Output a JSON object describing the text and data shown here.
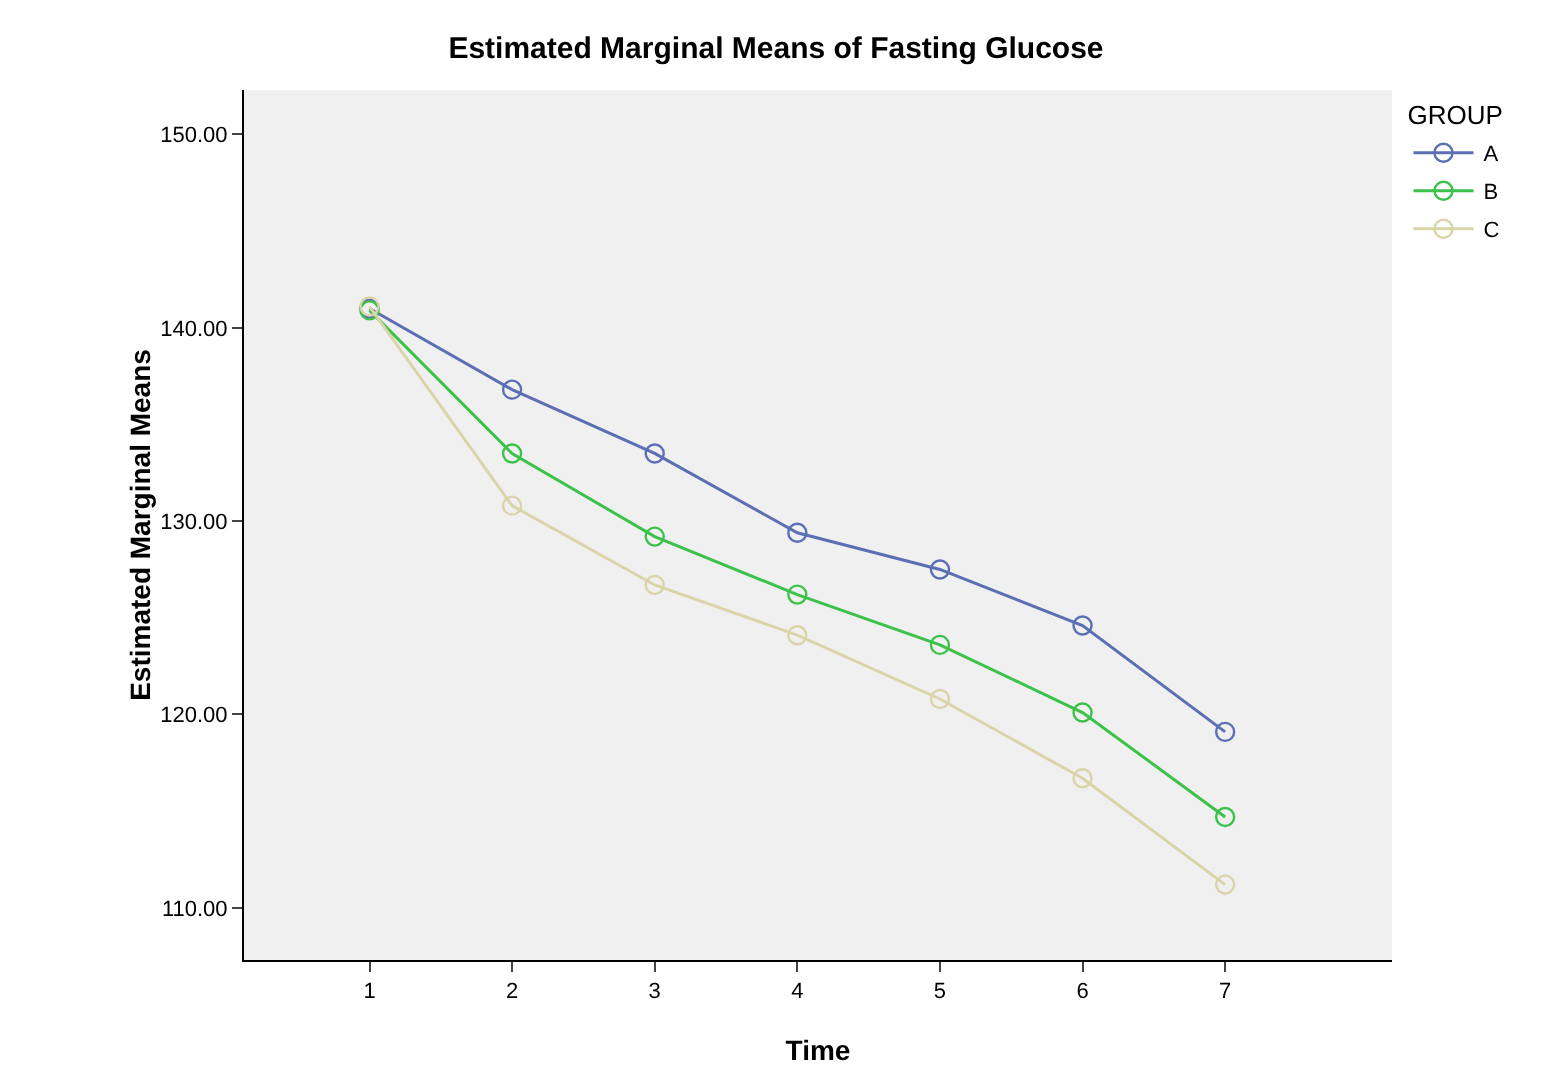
{
  "chart_data": {
    "type": "line",
    "title": "Estimated Marginal Means of Fasting Glucose",
    "xlabel": "Time",
    "ylabel": "Estimated Marginal Means",
    "legend_title": "GROUP",
    "x": [
      1,
      2,
      3,
      4,
      5,
      6,
      7
    ],
    "series": [
      {
        "name": "A",
        "color": "#5b6fb5",
        "values": [
          141.0,
          136.8,
          133.5,
          129.4,
          127.5,
          124.6,
          119.1
        ]
      },
      {
        "name": "B",
        "color": "#3cc24a",
        "values": [
          140.9,
          133.5,
          129.2,
          126.2,
          123.6,
          120.1,
          114.7
        ]
      },
      {
        "name": "C",
        "color": "#d9d5a8",
        "values": [
          141.1,
          130.8,
          126.7,
          124.1,
          120.8,
          116.7,
          111.2
        ]
      }
    ],
    "xlim": [
      0.12,
      8.17
    ],
    "xticks": [
      1,
      2,
      3,
      4,
      5,
      6,
      7
    ],
    "ylim": [
      107.3,
      152.3
    ],
    "yticks": [
      {
        "value": 110,
        "label": "110.00"
      },
      {
        "value": 120,
        "label": "120.00"
      },
      {
        "value": 130,
        "label": "130.00"
      },
      {
        "value": 140,
        "label": "140.00"
      },
      {
        "value": 150,
        "label": "150.00"
      }
    ],
    "grid": false,
    "legend": "top right",
    "marker": "circle",
    "line_style": "solid"
  }
}
